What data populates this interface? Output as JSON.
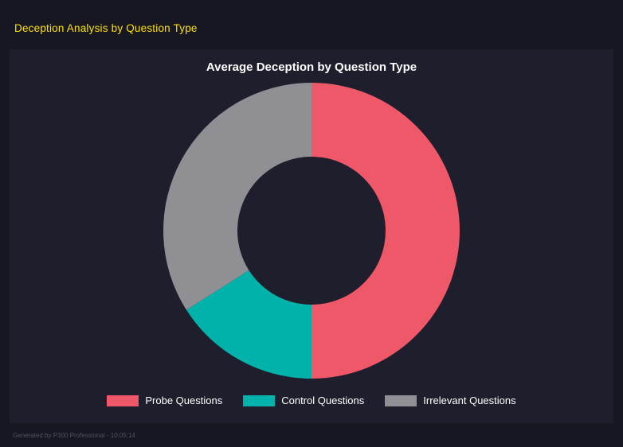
{
  "page": {
    "header_title": "Deception Analysis by Question Type",
    "footer_text": "Generated by P300 Professional - 10:05:14"
  },
  "chart_data": {
    "type": "pie",
    "donut": true,
    "cutout_percent": 50,
    "title": "Average Deception by Question Type",
    "categories": [
      "Probe Questions",
      "Control Questions",
      "Irrelevant Questions"
    ],
    "values": [
      50,
      16,
      34
    ],
    "values_are": "percent_of_total_estimated_from_arc_angles",
    "colors": [
      "#ef5868",
      "#00b2a9",
      "#8f8f94"
    ],
    "legend_position": "bottom",
    "start_angle_deg": 0,
    "direction": "clockwise"
  },
  "colors": {
    "background": "#171722",
    "panel": "#1e1e2d",
    "header_text": "#ffe100",
    "title_text": "#ffffff",
    "legend_text": "#ffffff",
    "footer_text": "#52525e"
  }
}
